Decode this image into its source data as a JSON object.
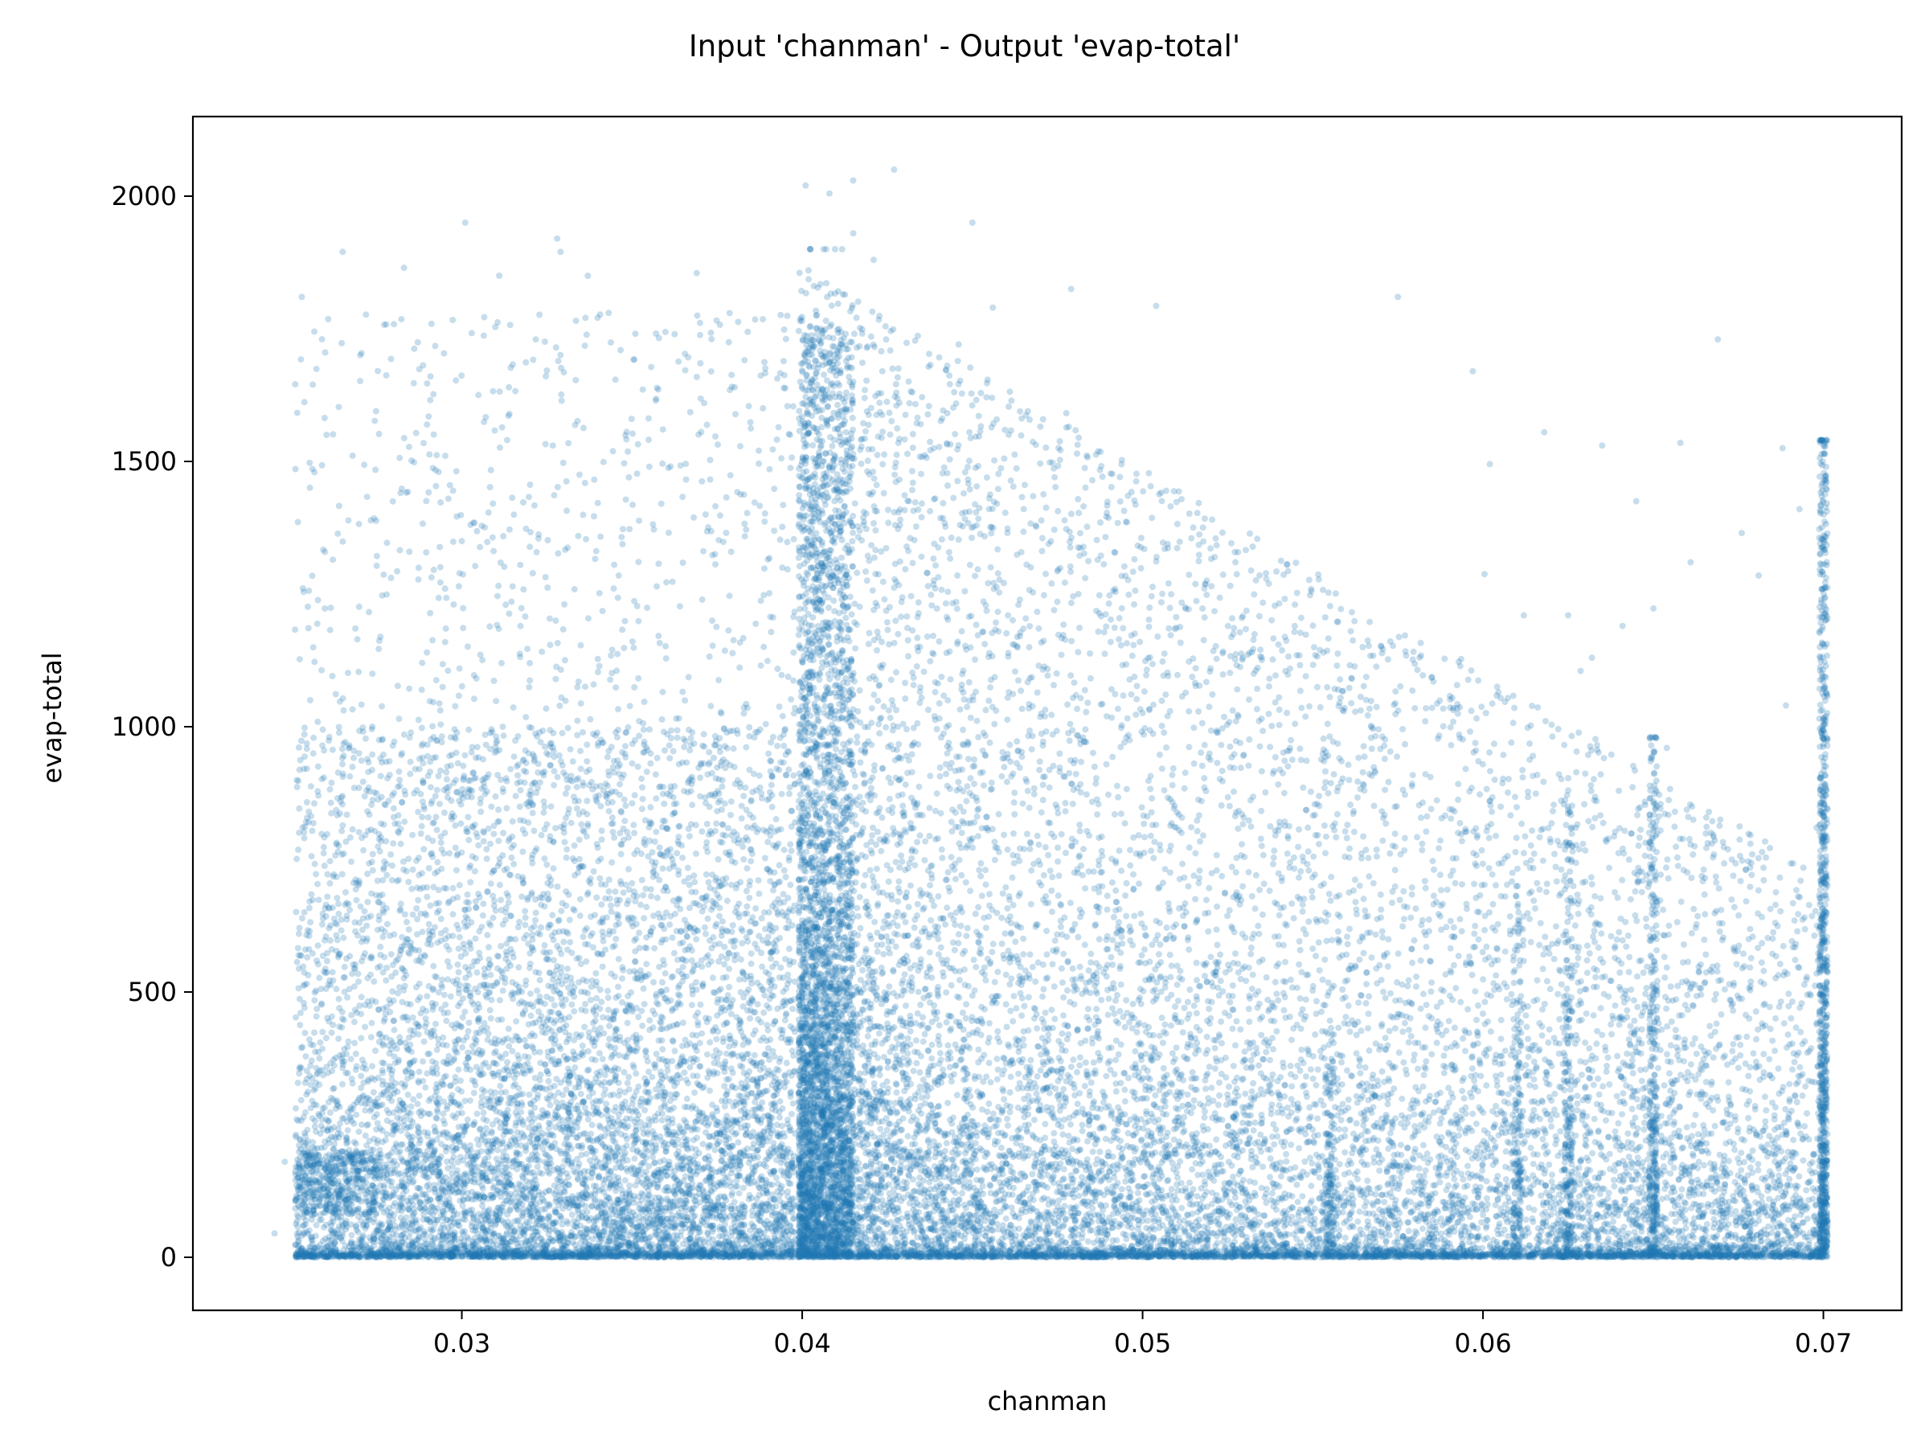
{
  "chart_data": {
    "type": "scatter",
    "title": "Input 'chanman' - Output 'evap-total'",
    "xlabel": "chanman",
    "ylabel": "evap-total",
    "xlim": [
      0.0221,
      0.0723
    ],
    "ylim": [
      -100,
      2150
    ],
    "xticks": [
      {
        "value": 0.03,
        "label": "0.03"
      },
      {
        "value": 0.04,
        "label": "0.04"
      },
      {
        "value": 0.05,
        "label": "0.05"
      },
      {
        "value": 0.06,
        "label": "0.06"
      },
      {
        "value": 0.07,
        "label": "0.07"
      }
    ],
    "yticks": [
      {
        "value": 0,
        "label": "0"
      },
      {
        "value": 500,
        "label": "500"
      },
      {
        "value": 1000,
        "label": "1000"
      },
      {
        "value": 1500,
        "label": "1500"
      },
      {
        "value": 2000,
        "label": "2000"
      }
    ],
    "grid": false,
    "legend": "none",
    "series": [
      {
        "color": "#1f77b4",
        "opacity": 0.25,
        "marker": "circle",
        "x_range": [
          0.025,
          0.07
        ],
        "y_range": [
          0,
          2050
        ],
        "points": [
          [
            0.0265,
            1895
          ],
          [
            0.0301,
            1950
          ],
          [
            0.0328,
            1920
          ],
          [
            0.0329,
            1895
          ],
          [
            0.0427,
            2050
          ],
          [
            0.0401,
            2020
          ],
          [
            0.0408,
            2005
          ],
          [
            0.045,
            1950
          ],
          [
            0.0253,
            1810
          ],
          [
            0.0283,
            1865
          ],
          [
            0.0311,
            1850
          ],
          [
            0.0337,
            1850
          ],
          [
            0.0369,
            1855
          ],
          [
            0.0575,
            1810
          ],
          [
            0.0597,
            1670
          ],
          [
            0.0602,
            1495
          ],
          [
            0.0618,
            1555
          ],
          [
            0.0635,
            1530
          ],
          [
            0.0669,
            1730
          ],
          [
            0.0658,
            1535
          ],
          [
            0.0688,
            1525
          ],
          [
            0.0689,
            1040
          ],
          [
            0.0693,
            1410
          ],
          [
            0.0676,
            1365
          ],
          [
            0.0645,
            1425
          ],
          [
            0.0661,
            1310
          ],
          [
            0.0681,
            1285
          ],
          [
            0.0254,
            580
          ],
          [
            0.0255,
            820
          ],
          [
            0.0248,
            180
          ],
          [
            0.0245,
            45
          ],
          [
            0.0252,
            30
          ],
          [
            0.0479,
            1825
          ],
          [
            0.0456,
            1790
          ],
          [
            0.0421,
            1880
          ],
          [
            0.0415,
            1930
          ],
          [
            0.0625,
            1210
          ],
          [
            0.0632,
            1130
          ],
          [
            0.0641,
            1190
          ],
          [
            0.0612,
            1210
          ],
          [
            0.0654,
            960
          ],
          [
            0.0621,
            760
          ],
          [
            0.0667,
            800
          ],
          [
            0.0698,
            810
          ]
        ]
      }
    ]
  }
}
